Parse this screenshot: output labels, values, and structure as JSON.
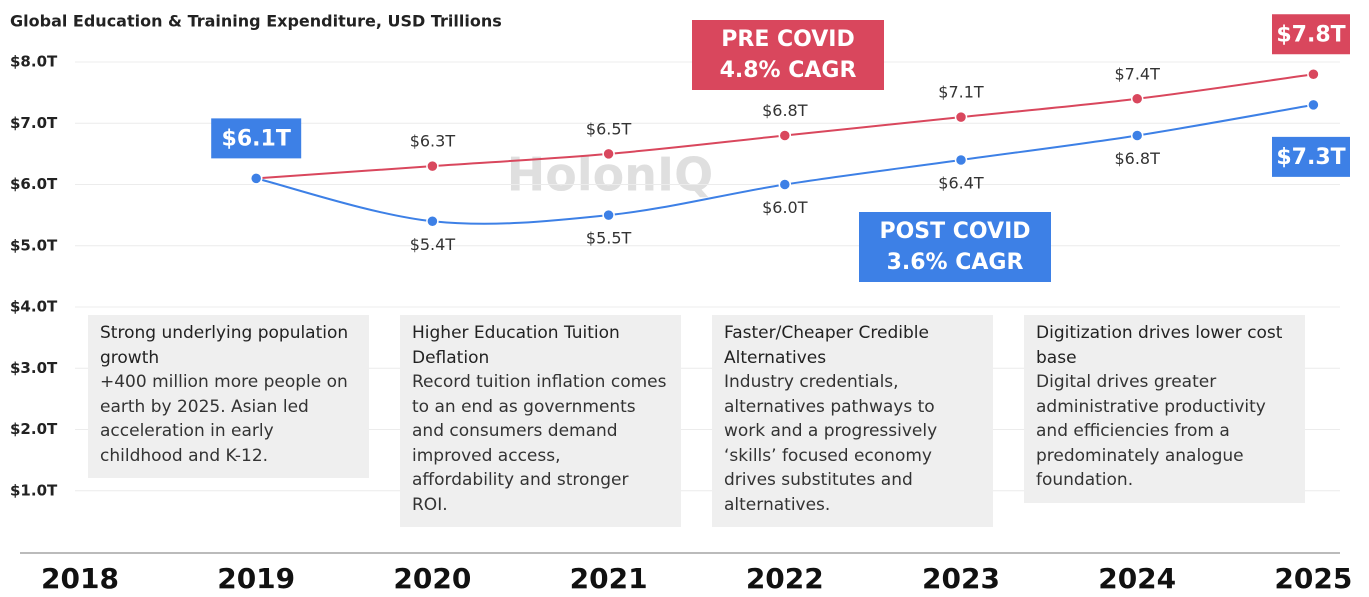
{
  "chart_data": {
    "type": "line",
    "title": "Global Education & Training Expenditure, USD Trillions",
    "watermark": "HolonIQ",
    "categories": [
      "2018",
      "2019",
      "2020",
      "2021",
      "2022",
      "2023",
      "2024",
      "2025"
    ],
    "series": [
      {
        "name": "PRE COVID",
        "cagr": "4.8% CAGR",
        "color": "#d9475d",
        "values": [
          null,
          6.1,
          6.3,
          6.5,
          6.8,
          7.1,
          7.4,
          7.8
        ],
        "value_labels": [
          null,
          null,
          "$6.3T",
          "$6.5T",
          "$6.8T",
          "$7.1T",
          "$7.4T",
          "$7.8T"
        ]
      },
      {
        "name": "POST COVID",
        "cagr": "3.6% CAGR",
        "color": "#3d80e6",
        "values": [
          null,
          6.1,
          5.4,
          5.5,
          6.0,
          6.4,
          6.8,
          7.3
        ],
        "value_labels": [
          null,
          "$6.1T",
          "$5.4T",
          "$5.5T",
          "$6.0T",
          "$6.4T",
          "$6.8T",
          "$7.3T"
        ]
      }
    ],
    "ylim": [
      0,
      8
    ],
    "yticks": [
      {
        "value": 1,
        "label": "$1.0T"
      },
      {
        "value": 2,
        "label": "$2.0T"
      },
      {
        "value": 3,
        "label": "$3.0T"
      },
      {
        "value": 4,
        "label": "$4.0T"
      },
      {
        "value": 5,
        "label": "$5.0T"
      },
      {
        "value": 6,
        "label": "$6.0T"
      },
      {
        "value": 7,
        "label": "$7.0T"
      },
      {
        "value": 8,
        "label": "$8.0T"
      }
    ],
    "grid": true,
    "annotations": [
      {
        "heading": "Strong underlying population growth",
        "text": "+400 million more people on earth by 2025. Asian led acceleration in early childhood and K-12."
      },
      {
        "heading": "Higher Education Tuition Deflation",
        "text": "Record tuition inflation comes to an end as governments and consumers demand improved access, affordability and stronger ROI."
      },
      {
        "heading": "Faster/Cheaper Credible Alternatives",
        "text": "Industry credentials, alternatives pathways to work and a progressively ‘skills’ focused economy drives substitutes and alternatives."
      },
      {
        "heading": "Digitization drives lower cost base",
        "text": "Digital drives greater administrative productivity and efficiencies from a predominately analogue foundation."
      }
    ]
  }
}
